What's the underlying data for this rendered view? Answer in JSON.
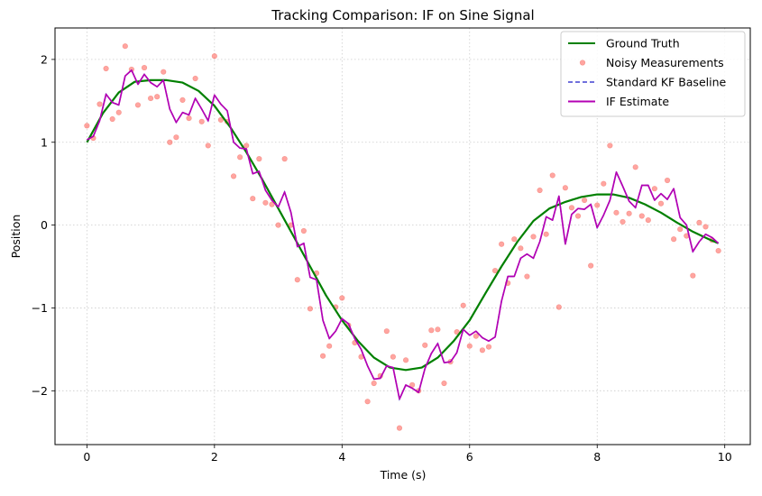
{
  "chart_data": {
    "type": "line",
    "title": "Tracking Comparison: IF on Sine Signal",
    "xlabel": "Time (s)",
    "ylabel": "Position",
    "xlim": [
      -0.5,
      10.4
    ],
    "ylim": [
      -2.65,
      2.38
    ],
    "x_ticks": [
      0,
      2,
      4,
      6,
      8,
      10
    ],
    "y_ticks": [
      -2,
      -1,
      0,
      1,
      2
    ],
    "x_tick_labels": [
      "0",
      "2",
      "4",
      "6",
      "8",
      "10"
    ],
    "y_tick_labels": [
      "−2",
      "−1",
      "0",
      "1",
      "2"
    ],
    "grid": true,
    "legend_position": "top-right",
    "legend": [
      {
        "label": "Ground Truth",
        "kind": "line",
        "color": "#008000",
        "dash": "solid"
      },
      {
        "label": "Noisy Measurements",
        "kind": "marker",
        "color": "#ff6961"
      },
      {
        "label": "Standard KF Baseline",
        "kind": "line",
        "color": "#4040d0",
        "dash": "dashed"
      },
      {
        "label": "IF Estimate",
        "kind": "line",
        "color": "#b300b3",
        "dash": "solid"
      }
    ],
    "ground_truth": {
      "x": [
        0,
        0.25,
        0.5,
        0.75,
        1,
        1.25,
        1.5,
        1.75,
        2,
        2.25,
        2.5,
        2.75,
        3,
        3.25,
        3.5,
        3.75,
        4,
        4.25,
        4.5,
        4.75,
        5,
        5.25,
        5.5,
        5.75,
        6,
        6.25,
        6.5,
        6.75,
        7,
        7.25,
        7.5,
        7.75,
        8,
        8.25,
        8.5,
        8.75,
        9,
        9.25,
        9.5,
        9.75,
        9.9
      ],
      "y": [
        1.0,
        1.35,
        1.6,
        1.73,
        1.75,
        1.75,
        1.72,
        1.62,
        1.44,
        1.18,
        0.88,
        0.55,
        0.2,
        -0.15,
        -0.5,
        -0.85,
        -1.15,
        -1.4,
        -1.6,
        -1.72,
        -1.75,
        -1.72,
        -1.6,
        -1.4,
        -1.15,
        -0.82,
        -0.5,
        -0.2,
        0.05,
        0.2,
        0.28,
        0.34,
        0.37,
        0.37,
        0.33,
        0.25,
        0.15,
        0.03,
        -0.08,
        -0.17,
        -0.22
      ]
    },
    "if_estimate": {
      "x": [
        0,
        0.1,
        0.2,
        0.3,
        0.4,
        0.5,
        0.6,
        0.7,
        0.8,
        0.9,
        1,
        1.1,
        1.2,
        1.3,
        1.4,
        1.5,
        1.6,
        1.7,
        1.8,
        1.9,
        2,
        2.1,
        2.2,
        2.3,
        2.4,
        2.5,
        2.6,
        2.7,
        2.8,
        2.9,
        3,
        3.1,
        3.2,
        3.3,
        3.4,
        3.5,
        3.6,
        3.7,
        3.8,
        3.9,
        4,
        4.1,
        4.2,
        4.3,
        4.4,
        4.5,
        4.6,
        4.7,
        4.8,
        4.9,
        5,
        5.1,
        5.2,
        5.3,
        5.4,
        5.5,
        5.6,
        5.7,
        5.8,
        5.9,
        6,
        6.1,
        6.2,
        6.3,
        6.4,
        6.5,
        6.6,
        6.7,
        6.8,
        6.9,
        7,
        7.1,
        7.2,
        7.3,
        7.4,
        7.5,
        7.6,
        7.7,
        7.8,
        7.9,
        8,
        8.1,
        8.2,
        8.3,
        8.4,
        8.5,
        8.6,
        8.7,
        8.8,
        8.9,
        9,
        9.1,
        9.2,
        9.3,
        9.4,
        9.5,
        9.6,
        9.7,
        9.8,
        9.9
      ],
      "y": [
        1.03,
        1.07,
        1.26,
        1.58,
        1.48,
        1.45,
        1.8,
        1.87,
        1.7,
        1.82,
        1.72,
        1.67,
        1.75,
        1.4,
        1.24,
        1.36,
        1.33,
        1.53,
        1.4,
        1.26,
        1.57,
        1.46,
        1.38,
        1.0,
        0.93,
        0.92,
        0.62,
        0.65,
        0.42,
        0.3,
        0.22,
        0.4,
        0.15,
        -0.26,
        -0.22,
        -0.63,
        -0.66,
        -1.15,
        -1.37,
        -1.28,
        -1.13,
        -1.19,
        -1.37,
        -1.5,
        -1.7,
        -1.86,
        -1.85,
        -1.7,
        -1.72,
        -2.1,
        -1.93,
        -1.97,
        -2.02,
        -1.73,
        -1.55,
        -1.43,
        -1.66,
        -1.65,
        -1.54,
        -1.26,
        -1.33,
        -1.28,
        -1.36,
        -1.4,
        -1.35,
        -0.92,
        -0.62,
        -0.62,
        -0.4,
        -0.35,
        -0.4,
        -0.2,
        0.1,
        0.06,
        0.35,
        -0.23,
        0.13,
        0.2,
        0.19,
        0.25,
        -0.03,
        0.12,
        0.3,
        0.64,
        0.47,
        0.29,
        0.21,
        0.48,
        0.48,
        0.3,
        0.38,
        0.31,
        0.44,
        0.09,
        0.0,
        -0.32,
        -0.2,
        -0.11,
        -0.15,
        -0.22
      ]
    },
    "kf_baseline": {
      "x": [
        0,
        0.1,
        0.2,
        0.3,
        0.4,
        0.5,
        0.6,
        0.7,
        0.8,
        0.9,
        1,
        1.1,
        1.2,
        1.3,
        1.4,
        1.5,
        1.6,
        1.7,
        1.8,
        1.9,
        2,
        2.1,
        2.2,
        2.3,
        2.4,
        2.5,
        2.6,
        2.7,
        2.8,
        2.9,
        3,
        3.1,
        3.2,
        3.3,
        3.4,
        3.5,
        3.6,
        3.7,
        3.8,
        3.9,
        4,
        4.1,
        4.2,
        4.3,
        4.4,
        4.5,
        4.6,
        4.7,
        4.8,
        4.9,
        5,
        5.1,
        5.2,
        5.3,
        5.4,
        5.5,
        5.6,
        5.7,
        5.8,
        5.9,
        6,
        6.1,
        6.2,
        6.3,
        6.4,
        6.5,
        6.6,
        6.7,
        6.8,
        6.9,
        7,
        7.1,
        7.2,
        7.3,
        7.4,
        7.5,
        7.6,
        7.7,
        7.8,
        7.9,
        8,
        8.1,
        8.2,
        8.3,
        8.4,
        8.5,
        8.6,
        8.7,
        8.8,
        8.9,
        9,
        9.1,
        9.2,
        9.3,
        9.4,
        9.5,
        9.6,
        9.7,
        9.8,
        9.9
      ],
      "y": [
        1.03,
        1.07,
        1.26,
        1.58,
        1.48,
        1.45,
        1.8,
        1.87,
        1.7,
        1.82,
        1.72,
        1.67,
        1.75,
        1.4,
        1.24,
        1.36,
        1.33,
        1.53,
        1.4,
        1.26,
        1.57,
        1.46,
        1.38,
        1.0,
        0.93,
        0.92,
        0.62,
        0.65,
        0.42,
        0.3,
        0.22,
        0.4,
        0.15,
        -0.26,
        -0.22,
        -0.63,
        -0.66,
        -1.15,
        -1.37,
        -1.28,
        -1.13,
        -1.19,
        -1.37,
        -1.5,
        -1.7,
        -1.86,
        -1.85,
        -1.7,
        -1.72,
        -2.1,
        -1.93,
        -1.97,
        -2.02,
        -1.73,
        -1.55,
        -1.43,
        -1.66,
        -1.65,
        -1.54,
        -1.26,
        -1.33,
        -1.28,
        -1.36,
        -1.4,
        -1.35,
        -0.92,
        -0.62,
        -0.62,
        -0.4,
        -0.35,
        -0.4,
        -0.2,
        0.1,
        0.06,
        0.35,
        -0.23,
        0.13,
        0.2,
        0.19,
        0.25,
        -0.03,
        0.12,
        0.3,
        0.64,
        0.47,
        0.29,
        0.21,
        0.48,
        0.48,
        0.3,
        0.38,
        0.31,
        0.44,
        0.09,
        0.0,
        -0.32,
        -0.2,
        -0.11,
        -0.15,
        -0.22
      ]
    },
    "measurements": {
      "x": [
        0,
        0.1,
        0.2,
        0.3,
        0.4,
        0.5,
        0.6,
        0.7,
        0.8,
        0.9,
        1,
        1.1,
        1.2,
        1.3,
        1.4,
        1.5,
        1.6,
        1.7,
        1.8,
        1.9,
        2,
        2.1,
        2.2,
        2.3,
        2.4,
        2.5,
        2.6,
        2.7,
        2.8,
        2.9,
        3,
        3.1,
        3.2,
        3.3,
        3.4,
        3.5,
        3.6,
        3.7,
        3.8,
        3.9,
        4,
        4.1,
        4.2,
        4.3,
        4.4,
        4.5,
        4.6,
        4.7,
        4.8,
        4.9,
        5,
        5.1,
        5.2,
        5.3,
        5.4,
        5.5,
        5.6,
        5.7,
        5.8,
        5.9,
        6,
        6.1,
        6.2,
        6.3,
        6.4,
        6.5,
        6.6,
        6.7,
        6.8,
        6.9,
        7,
        7.1,
        7.2,
        7.3,
        7.4,
        7.5,
        7.6,
        7.7,
        7.8,
        7.9,
        8,
        8.1,
        8.2,
        8.3,
        8.4,
        8.5,
        8.6,
        8.7,
        8.8,
        8.9,
        9,
        9.1,
        9.2,
        9.3,
        9.4,
        9.5,
        9.6,
        9.7,
        9.8,
        9.9
      ],
      "y": [
        1.2,
        1.05,
        1.46,
        1.89,
        1.28,
        1.36,
        2.16,
        1.88,
        1.45,
        1.9,
        1.53,
        1.55,
        1.85,
        1.0,
        1.06,
        1.51,
        1.29,
        1.77,
        1.25,
        0.96,
        2.04,
        1.27,
        1.25,
        0.59,
        0.82,
        0.96,
        0.32,
        0.8,
        0.27,
        0.25,
        0.0,
        0.8,
        0.0,
        -0.66,
        -0.07,
        -1.01,
        -0.58,
        -1.58,
        -1.46,
        -0.99,
        -0.88,
        -1.21,
        -1.42,
        -1.59,
        -2.13,
        -1.91,
        -1.82,
        -1.28,
        -1.59,
        -2.45,
        -1.63,
        -1.93,
        -2.0,
        -1.45,
        -1.27,
        -1.26,
        -1.91,
        -1.65,
        -1.29,
        -0.97,
        -1.46,
        -1.34,
        -1.51,
        -1.47,
        -0.55,
        -0.23,
        -0.7,
        -0.17,
        -0.28,
        -0.62,
        -0.14,
        0.42,
        -0.11,
        0.6,
        -0.99,
        0.45,
        0.21,
        0.11,
        0.3,
        -0.49,
        0.24,
        0.5,
        0.96,
        0.15,
        0.04,
        0.14,
        0.7,
        0.11,
        0.06,
        0.44,
        0.26,
        0.54,
        -0.17,
        -0.05,
        -0.13,
        -0.61,
        0.03,
        -0.02,
        -0.18,
        -0.31
      ]
    }
  }
}
